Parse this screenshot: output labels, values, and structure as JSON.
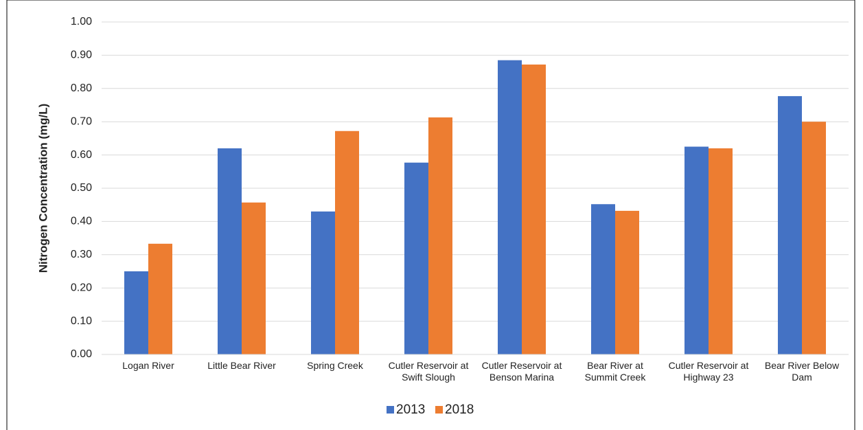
{
  "chart_data": {
    "type": "bar",
    "y_label": "Nitrogen Concentration (mg/L)",
    "categories": [
      "Logan River",
      "Little Bear River",
      "Spring Creek",
      "Cutler Reservoir at Swift Slough",
      "Cutler Reservoir at Benson Marina",
      "Bear River at Summit Creek",
      "Cutler Reservoir at Highway 23",
      "Bear River Below Dam"
    ],
    "series": [
      {
        "name": "2013",
        "color": "#4472c4",
        "values": [
          0.25,
          0.62,
          0.43,
          0.577,
          0.885,
          0.452,
          0.625,
          0.777
        ]
      },
      {
        "name": "2018",
        "color": "#ed7d31",
        "values": [
          0.333,
          0.457,
          0.672,
          0.713,
          0.872,
          0.432,
          0.62,
          0.7
        ]
      }
    ],
    "ylim": [
      0,
      1
    ],
    "yticks": [
      {
        "value": 0,
        "label": "0.00"
      },
      {
        "value": 0.1,
        "label": "0.10"
      },
      {
        "value": 0.2,
        "label": "0.20"
      },
      {
        "value": 0.3,
        "label": "0.30"
      },
      {
        "value": 0.4,
        "label": "0.40"
      },
      {
        "value": 0.5,
        "label": "0.50"
      },
      {
        "value": 0.6,
        "label": "0.60"
      },
      {
        "value": 0.7,
        "label": "0.70"
      },
      {
        "value": 0.8,
        "label": "0.80"
      },
      {
        "value": 0.9,
        "label": "0.90"
      },
      {
        "value": 1,
        "label": "1.00"
      }
    ],
    "grid": true,
    "legend": "bottom"
  }
}
